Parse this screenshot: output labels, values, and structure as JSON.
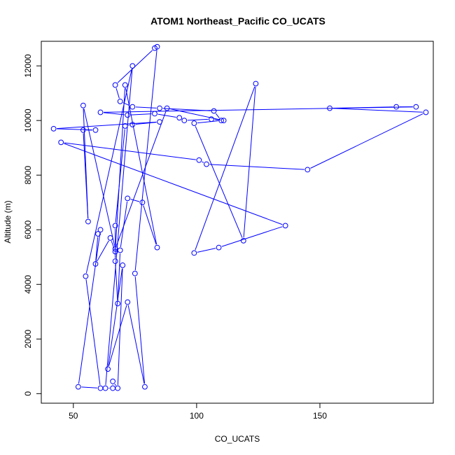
{
  "chart_data": {
    "type": "line",
    "title": "ATOM1 Northeast_Pacific CO_UCATS",
    "xlabel": "CO_UCATS",
    "ylabel": "Altitude (m)",
    "xlim": [
      37,
      196
    ],
    "ylim": [
      -350,
      12900
    ],
    "xticks": [
      50,
      100,
      150
    ],
    "yticks": [
      0,
      2000,
      4000,
      6000,
      8000,
      10000,
      12000
    ],
    "grid": false,
    "color": "#0000ff",
    "marker": "open-circle",
    "series": [
      {
        "name": "",
        "points": [
          [
            83,
            12650
          ],
          [
            67,
            11300
          ],
          [
            69,
            10700
          ],
          [
            74,
            10500
          ],
          [
            85,
            10450
          ],
          [
            107,
            10350
          ],
          [
            110,
            10000
          ],
          [
            99,
            9900
          ],
          [
            119,
            5600
          ],
          [
            124,
            11350
          ],
          [
            99,
            5150
          ],
          [
            109,
            5350
          ],
          [
            136,
            6150
          ],
          [
            45,
            9200
          ],
          [
            101,
            8550
          ],
          [
            104,
            8400
          ],
          [
            145,
            8200
          ],
          [
            193,
            10300
          ],
          [
            154,
            10450
          ],
          [
            181,
            10500
          ],
          [
            189,
            10500
          ],
          [
            61,
            10300
          ],
          [
            72,
            10200
          ],
          [
            83,
            10250
          ],
          [
            93,
            10100
          ],
          [
            95,
            10000
          ],
          [
            106,
            10050
          ],
          [
            111,
            10000
          ],
          [
            88,
            10450
          ],
          [
            67,
            5300
          ],
          [
            54,
            10550
          ],
          [
            56,
            6300
          ],
          [
            54,
            9650
          ],
          [
            59,
            9650
          ],
          [
            42,
            9700
          ],
          [
            85,
            9950
          ],
          [
            74,
            9850
          ],
          [
            71,
            9800
          ],
          [
            67,
            6150
          ],
          [
            67,
            4850
          ],
          [
            68,
            3300
          ],
          [
            69,
            5250
          ],
          [
            72,
            7150
          ],
          [
            78,
            7000
          ],
          [
            84,
            5350
          ],
          [
            71,
            11300
          ],
          [
            67,
            5200
          ],
          [
            65,
            5700
          ],
          [
            59,
            4750
          ],
          [
            60,
            5850
          ],
          [
            61,
            6000
          ],
          [
            52,
            250
          ],
          [
            61,
            200
          ],
          [
            55,
            4300
          ],
          [
            74,
            12000
          ],
          [
            63,
            200
          ],
          [
            66,
            200
          ],
          [
            66,
            450
          ],
          [
            68,
            200
          ],
          [
            70,
            4700
          ],
          [
            64,
            900
          ],
          [
            72,
            3350
          ],
          [
            79,
            250
          ],
          [
            75,
            4400
          ],
          [
            84,
            12700
          ]
        ]
      }
    ]
  }
}
